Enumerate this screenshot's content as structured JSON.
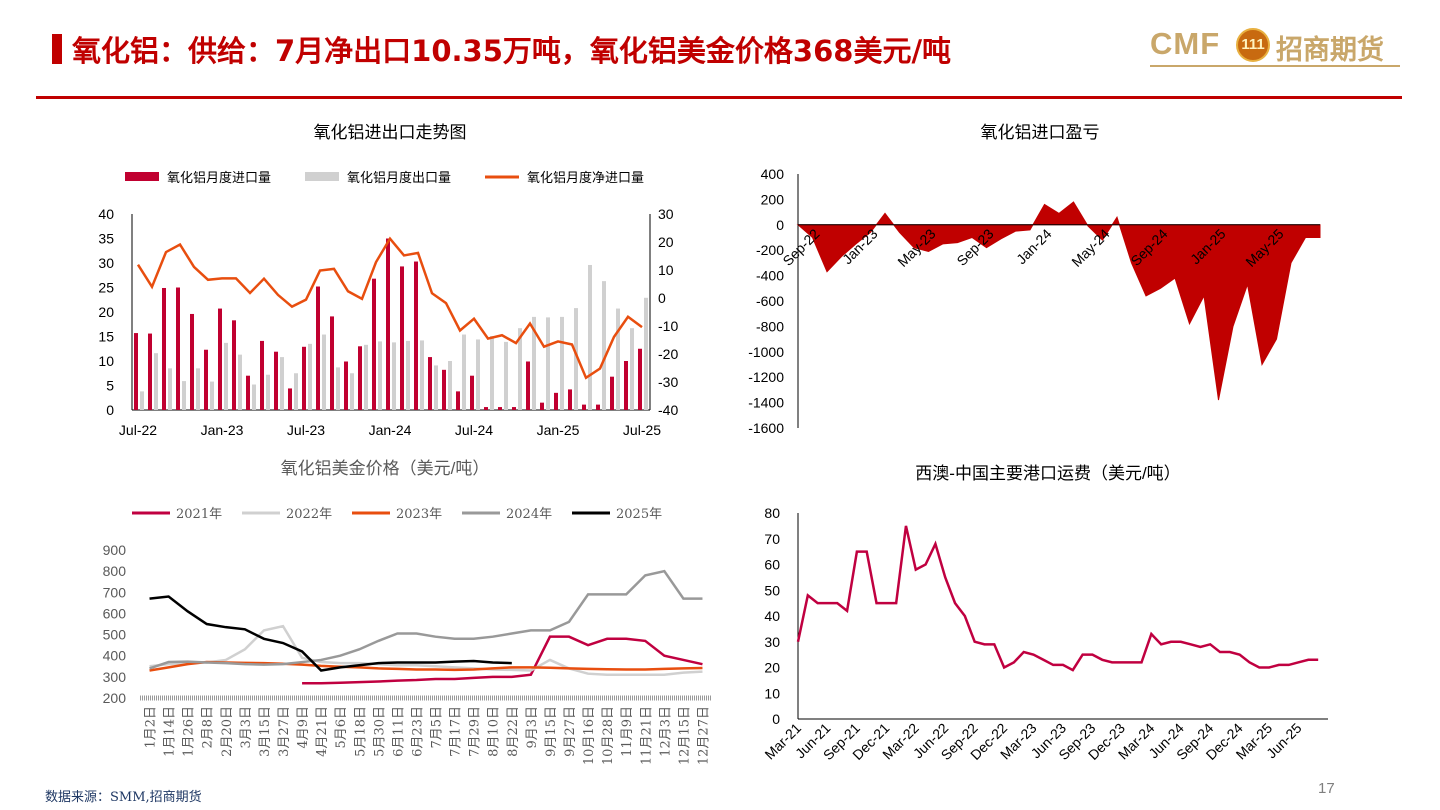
{
  "page": {
    "title": "氧化铝：供给：7月净出口10.35万吨，氧化铝美金价格368美元/吨",
    "source": "数据来源：SMM,招商期货",
    "page_number": "17",
    "accent_color": "#c00000"
  },
  "logo": {
    "brand": "CMF",
    "badge": "111",
    "name": "招商期货"
  },
  "chart_data": [
    {
      "type": "bar",
      "title": "氧化铝进出口走势图",
      "categories": [
        "Jul-22",
        "Aug-22",
        "Sep-22",
        "Oct-22",
        "Nov-22",
        "Dec-22",
        "Jan-23",
        "Feb-23",
        "Mar-23",
        "Apr-23",
        "May-23",
        "Jun-23",
        "Jul-23",
        "Aug-23",
        "Sep-23",
        "Oct-23",
        "Nov-23",
        "Dec-23",
        "Jan-24",
        "Feb-24",
        "Mar-24",
        "Apr-24",
        "May-24",
        "Jun-24",
        "Jul-24",
        "Aug-24",
        "Sep-24",
        "Oct-24",
        "Nov-24",
        "Dec-24",
        "Jan-25",
        "Feb-25",
        "Mar-25",
        "Apr-25",
        "May-25",
        "Jun-25",
        "Jul-25"
      ],
      "x_tick_labels": [
        "Jul-22",
        "Jan-23",
        "Jul-23",
        "Jan-24",
        "Jul-24",
        "Jan-25",
        "Jul-25"
      ],
      "series": [
        {
          "name": "氧化铝月度进口量",
          "axis": "left",
          "color": "#c00030",
          "values": [
            15.7,
            15.6,
            24.9,
            25.0,
            19.6,
            12.3,
            20.7,
            18.3,
            7.0,
            14.1,
            11.9,
            4.4,
            12.9,
            25.2,
            19.1,
            9.9,
            13.0,
            26.8,
            35.0,
            29.3,
            30.3,
            10.8,
            8.2,
            3.8,
            7.0,
            0.6,
            0.6,
            0.6,
            9.9,
            1.5,
            3.5,
            4.2,
            1.1,
            1.1,
            6.8,
            10.0,
            12.5
          ]
        },
        {
          "name": "氧化铝月度出口量",
          "axis": "left",
          "color": "#d0d0d0",
          "values": [
            3.8,
            11.6,
            8.5,
            5.9,
            8.5,
            5.8,
            13.7,
            11.3,
            5.2,
            7.2,
            10.8,
            7.5,
            13.5,
            15.4,
            8.7,
            7.5,
            13.3,
            14.0,
            13.8,
            14.1,
            14.2,
            9.1,
            10.0,
            15.4,
            14.4,
            15.1,
            13.9,
            16.7,
            19.0,
            18.9,
            19.0,
            20.8,
            29.6,
            26.3,
            20.7,
            16.7,
            22.9
          ]
        },
        {
          "name": "氧化铝月度净进口量",
          "axis": "right",
          "color": "#e84e0f",
          "values": [
            11.9,
            4.0,
            16.4,
            19.1,
            11.1,
            6.5,
            7.0,
            7.0,
            1.8,
            6.9,
            1.1,
            -3.1,
            -0.6,
            9.8,
            10.4,
            2.4,
            -0.3,
            12.8,
            21.2,
            15.2,
            16.1,
            1.7,
            -1.8,
            -11.6,
            -7.4,
            -14.5,
            -13.3,
            -16.1,
            -9.1,
            -17.4,
            -15.5,
            -16.6,
            -28.5,
            -25.2,
            -13.9,
            -6.7,
            -10.4
          ]
        }
      ],
      "ylim_left": [
        0,
        40
      ],
      "ylim_right": [
        -40,
        30
      ],
      "left_ticks": [
        0,
        5,
        10,
        15,
        20,
        25,
        30,
        35,
        40
      ],
      "right_ticks": [
        -40,
        -30,
        -20,
        -10,
        0,
        10,
        20,
        30
      ],
      "legend": "top"
    },
    {
      "type": "area",
      "title": "氧化铝进口盈亏",
      "x_tick_labels": [
        "Sep-22",
        "Jan-23",
        "May-23",
        "Sep-23",
        "Jan-24",
        "May-24",
        "Sep-24",
        "Jan-25",
        "May-25"
      ],
      "ylim": [
        -1600,
        400
      ],
      "y_ticks": [
        -1600,
        -1400,
        -1200,
        -1000,
        -800,
        -600,
        -400,
        -200,
        0,
        200,
        400
      ],
      "color": "#c00000",
      "series": [
        {
          "x": [
            "2022-09",
            "2022-10",
            "2022-11",
            "2022-12",
            "2023-01",
            "2023-02",
            "2023-03",
            "2023-04",
            "2023-05",
            "2023-06",
            "2023-07",
            "2023-08",
            "2023-09",
            "2023-10",
            "2023-11",
            "2023-12",
            "2024-01",
            "2024-02",
            "2024-03",
            "2024-04",
            "2024-05",
            "2024-06",
            "2024-07",
            "2024-08",
            "2024-09",
            "2024-10",
            "2024-11",
            "2024-12",
            "2025-01",
            "2025-02",
            "2025-03",
            "2025-04",
            "2025-05",
            "2025-06",
            "2025-07",
            "2025-08"
          ],
          "values": [
            -100,
            -370,
            -250,
            -150,
            -60,
            90,
            -60,
            -180,
            -210,
            -150,
            -140,
            -100,
            -180,
            -110,
            -50,
            -40,
            160,
            90,
            180,
            -10,
            -120,
            60,
            -300,
            -560,
            -500,
            -420,
            -780,
            -560,
            -1380,
            -800,
            -470,
            -1100,
            -900,
            -300,
            -100,
            -100
          ]
        }
      ],
      "legend": "none"
    },
    {
      "type": "line",
      "title": "氧化铝美金价格（美元/吨）",
      "x_tick_labels": [
        "1月2日",
        "1月14日",
        "1月26日",
        "2月8日",
        "2月20日",
        "3月3日",
        "3月15日",
        "3月27日",
        "4月9日",
        "4月21日",
        "5月6日",
        "5月18日",
        "5月30日",
        "6月11日",
        "6月23日",
        "7月5日",
        "7月17日",
        "7月29日",
        "8月10日",
        "8月22日",
        "9月3日",
        "9月15日",
        "9月27日",
        "10月16日",
        "10月28日",
        "11月9日",
        "11月21日",
        "12月3日",
        "12月15日",
        "12月27日"
      ],
      "ylim": [
        200,
        900
      ],
      "y_ticks": [
        200,
        300,
        400,
        500,
        600,
        700,
        800,
        900
      ],
      "series": [
        {
          "name": "2021年",
          "color": "#c00040",
          "x": [
            8,
            9,
            10,
            11,
            12,
            13,
            14,
            15,
            16,
            17,
            18,
            19,
            20,
            21,
            22,
            23,
            24,
            25,
            26,
            27,
            28,
            29
          ],
          "values": [
            270,
            270,
            272,
            275,
            278,
            282,
            285,
            290,
            290,
            295,
            300,
            300,
            310,
            490,
            490,
            450,
            480,
            480,
            470,
            400,
            380,
            360
          ]
        },
        {
          "name": "2022年",
          "color": "#d0d0d0",
          "x": [
            0,
            1,
            2,
            3,
            4,
            5,
            6,
            7,
            8,
            9,
            10,
            11,
            12,
            13,
            14,
            15,
            16,
            17,
            18,
            19,
            20,
            21,
            22,
            23,
            24,
            25,
            26,
            27,
            28,
            29
          ],
          "values": [
            350,
            360,
            365,
            368,
            380,
            430,
            520,
            540,
            390,
            370,
            365,
            365,
            360,
            355,
            355,
            350,
            345,
            340,
            335,
            333,
            330,
            380,
            340,
            315,
            310,
            310,
            310,
            310,
            320,
            325
          ]
        },
        {
          "name": "2023年",
          "color": "#e84e0f",
          "x": [
            0,
            1,
            2,
            3,
            4,
            5,
            6,
            7,
            8,
            9,
            10,
            11,
            12,
            13,
            14,
            15,
            16,
            17,
            18,
            19,
            20,
            21,
            22,
            23,
            24,
            25,
            26,
            27,
            28,
            29
          ],
          "values": [
            330,
            345,
            360,
            370,
            368,
            366,
            365,
            362,
            358,
            352,
            348,
            345,
            340,
            338,
            335,
            335,
            333,
            335,
            340,
            345,
            345,
            343,
            340,
            338,
            336,
            335,
            335,
            338,
            340,
            342
          ]
        },
        {
          "name": "2024年",
          "color": "#999999",
          "x": [
            0,
            1,
            2,
            3,
            4,
            5,
            6,
            7,
            8,
            9,
            10,
            11,
            12,
            13,
            14,
            15,
            16,
            17,
            18,
            19,
            20,
            21,
            22,
            23,
            24,
            25,
            26,
            27,
            28,
            29
          ],
          "values": [
            340,
            370,
            372,
            368,
            365,
            360,
            358,
            360,
            370,
            380,
            400,
            430,
            470,
            505,
            505,
            490,
            480,
            480,
            490,
            505,
            520,
            520,
            560,
            690,
            690,
            690,
            780,
            800,
            670,
            670
          ]
        },
        {
          "name": "2025年",
          "color": "#000000",
          "x": [
            0,
            1,
            2,
            3,
            4,
            5,
            6,
            7,
            8,
            9,
            10,
            11,
            12,
            13,
            14,
            15,
            16,
            17,
            18,
            19
          ],
          "values": [
            670,
            680,
            610,
            550,
            535,
            525,
            480,
            460,
            420,
            330,
            345,
            355,
            365,
            368,
            368,
            368,
            372,
            375,
            368,
            365
          ]
        }
      ],
      "legend": "top"
    },
    {
      "type": "line",
      "title": "西澳-中国主要港口运费（美元/吨）",
      "x_tick_labels": [
        "Mar-21",
        "Jun-21",
        "Sep-21",
        "Dec-21",
        "Mar-22",
        "Jun-22",
        "Sep-22",
        "Dec-22",
        "Mar-23",
        "Jun-23",
        "Sep-23",
        "Dec-23",
        "Mar-24",
        "Jun-24",
        "Sep-24",
        "Dec-24",
        "Mar-25",
        "Jun-25"
      ],
      "ylim": [
        0,
        80
      ],
      "y_ticks": [
        0,
        10,
        20,
        30,
        40,
        50,
        60,
        70,
        80
      ],
      "series": [
        {
          "name": "",
          "color": "#c00040",
          "x": [
            "2021-03",
            "2021-04",
            "2021-05",
            "2021-06",
            "2021-07",
            "2021-08",
            "2021-09",
            "2021-10",
            "2021-11",
            "2021-12",
            "2022-01",
            "2022-02",
            "2022-03",
            "2022-04",
            "2022-05",
            "2022-06",
            "2022-07",
            "2022-08",
            "2022-09",
            "2022-10",
            "2022-11",
            "2022-12",
            "2023-01",
            "2023-02",
            "2023-03",
            "2023-04",
            "2023-05",
            "2023-06",
            "2023-07",
            "2023-08",
            "2023-09",
            "2023-10",
            "2023-11",
            "2023-12",
            "2024-01",
            "2024-02",
            "2024-03",
            "2024-04",
            "2024-05",
            "2024-06",
            "2024-07",
            "2024-08",
            "2024-09",
            "2024-10",
            "2024-11",
            "2024-12",
            "2025-01",
            "2025-02",
            "2025-03",
            "2025-04",
            "2025-05",
            "2025-06",
            "2025-07",
            "2025-08"
          ],
          "values": [
            30,
            48,
            45,
            45,
            45,
            42,
            65,
            65,
            45,
            45,
            45,
            75,
            58,
            60,
            68,
            55,
            45,
            40,
            30,
            29,
            29,
            20,
            22,
            26,
            25,
            23,
            21,
            21,
            19,
            25,
            25,
            23,
            22,
            22,
            22,
            22,
            33,
            29,
            30,
            30,
            29,
            28,
            29,
            26,
            26,
            25,
            22,
            20,
            20,
            21,
            21,
            22,
            23,
            23
          ]
        }
      ],
      "legend": "none"
    }
  ]
}
